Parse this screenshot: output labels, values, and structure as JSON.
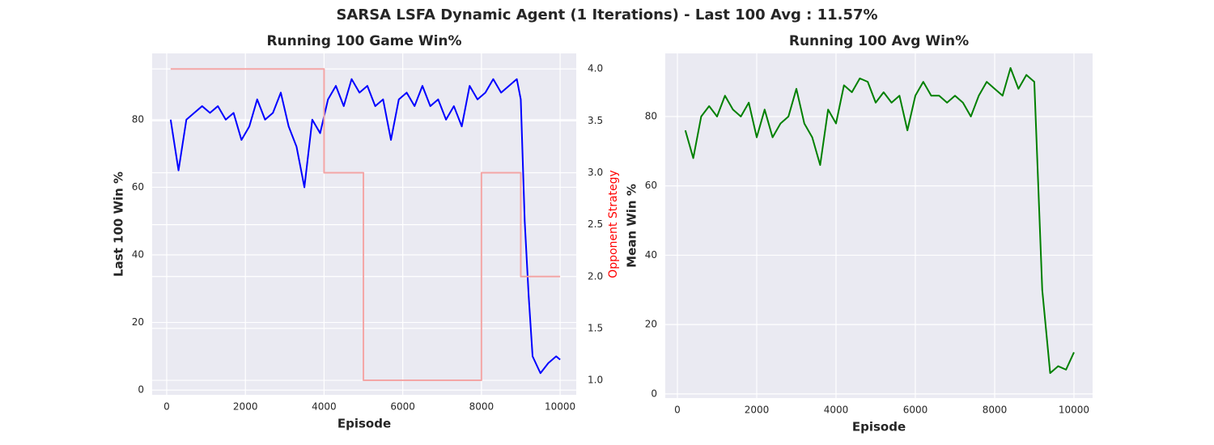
{
  "title": "SARSA LSFA Dynamic Agent (1 Iterations) -  Last 100 Avg : 11.57%",
  "chart_data": [
    {
      "type": "line",
      "title": "Running 100 Game Win%",
      "xlabel": "Episode",
      "ylabel": "Last 100 Win %",
      "y2label": "Opponent Strategy",
      "y2label_color": "#ff0000",
      "xlim": [
        -370,
        10410
      ],
      "ylim": [
        -1.4,
        99.6
      ],
      "y2lim": [
        0.86,
        4.15
      ],
      "xticks": [
        0,
        2000,
        4000,
        6000,
        8000,
        10000
      ],
      "yticks": [
        0,
        20,
        40,
        60,
        80
      ],
      "y2ticks": [
        {
          "value": 1,
          "label": "1.0"
        },
        {
          "value": 1.5,
          "label": "1.5"
        },
        {
          "value": 2,
          "label": "2.0"
        },
        {
          "value": 2.5,
          "label": "2.5"
        },
        {
          "value": 3,
          "label": "3.0"
        },
        {
          "value": 3.5,
          "label": "3.5"
        },
        {
          "value": 4,
          "label": "4.0"
        }
      ],
      "grid": true,
      "series": [
        {
          "color": "#0000ff",
          "x": [
            100,
            300,
            500,
            700,
            900,
            1100,
            1300,
            1500,
            1700,
            1900,
            2100,
            2300,
            2500,
            2700,
            2900,
            3100,
            3300,
            3500,
            3700,
            3900,
            4100,
            4300,
            4500,
            4700,
            4900,
            5100,
            5300,
            5500,
            5700,
            5900,
            6100,
            6300,
            6500,
            6700,
            6900,
            7100,
            7300,
            7500,
            7700,
            7900,
            8100,
            8300,
            8500,
            8700,
            8900,
            9000,
            9100,
            9200,
            9300,
            9500,
            9700,
            9900,
            10000
          ],
          "values": [
            80,
            65,
            80,
            82,
            84,
            82,
            84,
            80,
            82,
            74,
            78,
            86,
            80,
            82,
            88,
            78,
            72,
            60,
            80,
            76,
            86,
            90,
            84,
            92,
            88,
            90,
            84,
            86,
            74,
            86,
            88,
            84,
            90,
            84,
            86,
            80,
            84,
            78,
            90,
            86,
            88,
            92,
            88,
            90,
            92,
            86,
            50,
            28,
            10,
            5,
            8,
            10,
            9
          ]
        },
        {
          "color": "#f4a6a6",
          "axis": "y2",
          "x": [
            100,
            4000,
            4000,
            5000,
            5000,
            8000,
            8000,
            9000,
            9000,
            10000
          ],
          "values": [
            4,
            4,
            3,
            3,
            1,
            1,
            3,
            3,
            2,
            2
          ]
        }
      ]
    },
    {
      "type": "line",
      "title": "Running 100 Avg Win%",
      "xlabel": "Episode",
      "ylabel": "Mean Win %",
      "xlim": [
        -306,
        10470
      ],
      "ylim": [
        -1.2,
        98.2
      ],
      "xticks": [
        0,
        2000,
        4000,
        6000,
        8000,
        10000
      ],
      "yticks": [
        0,
        20,
        40,
        60,
        80
      ],
      "grid": true,
      "series": [
        {
          "color": "#008000",
          "x": [
            200,
            400,
            600,
            800,
            1000,
            1200,
            1400,
            1600,
            1800,
            2000,
            2200,
            2400,
            2600,
            2800,
            3000,
            3200,
            3400,
            3600,
            3800,
            4000,
            4200,
            4400,
            4600,
            4800,
            5000,
            5200,
            5400,
            5600,
            5800,
            6000,
            6200,
            6400,
            6600,
            6800,
            7000,
            7200,
            7400,
            7600,
            7800,
            8000,
            8200,
            8400,
            8600,
            8800,
            9000,
            9200,
            9400,
            9600,
            9800,
            10000
          ],
          "values": [
            76,
            68,
            80,
            83,
            80,
            86,
            82,
            80,
            84,
            74,
            82,
            74,
            78,
            80,
            88,
            78,
            74,
            66,
            82,
            78,
            89,
            87,
            91,
            90,
            84,
            87,
            84,
            86,
            76,
            86,
            90,
            86,
            86,
            84,
            86,
            84,
            80,
            86,
            90,
            88,
            86,
            94,
            88,
            92,
            90,
            30,
            6,
            8,
            7,
            12
          ]
        }
      ]
    }
  ]
}
